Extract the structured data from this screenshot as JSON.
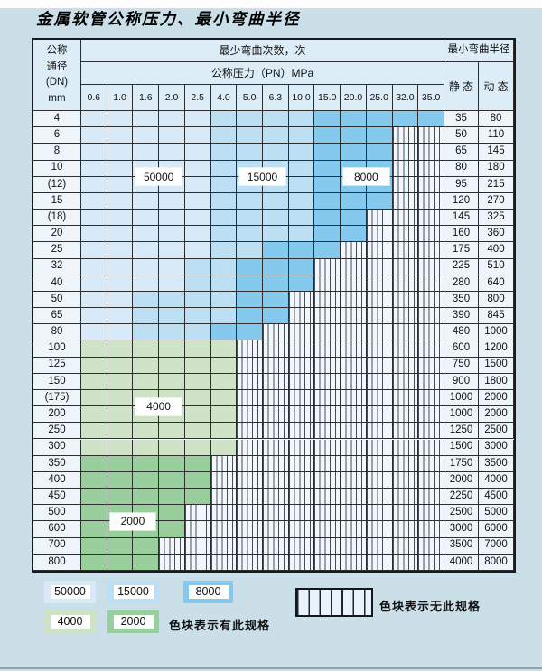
{
  "title": "金属软管公称压力、最小弯曲半径",
  "table": {
    "dn_header_lines": [
      "公称",
      "通径",
      "(DN)",
      "mm"
    ],
    "bend_cycles_header": "最少弯曲次数，次",
    "pressure_header": "公称压力（PN）MPa",
    "min_radius_header": "最小弯曲半径",
    "static_header": "静 态",
    "dynamic_header": "动 态",
    "pressure_columns": [
      "0.6",
      "1.0",
      "1.6",
      "2.0",
      "2.5",
      "4.0",
      "5.0",
      "6.3",
      "10.0",
      "15.0",
      "20.0",
      "25.0",
      "32.0",
      "35.0"
    ],
    "rows": [
      {
        "dn": "4",
        "cells": [
          "b1",
          "b1",
          "b1",
          "b1",
          "b1",
          "b2",
          "b2",
          "b2",
          "b2",
          "b3",
          "b3",
          "b3",
          "b3",
          "b3"
        ],
        "static": "35",
        "dynamic": "80"
      },
      {
        "dn": "6",
        "cells": [
          "b1",
          "b1",
          "b1",
          "b1",
          "b1",
          "b2",
          "b2",
          "b2",
          "b2",
          "b3",
          "b3",
          "b3",
          "x",
          "x"
        ],
        "static": "50",
        "dynamic": "110"
      },
      {
        "dn": "8",
        "cells": [
          "b1",
          "b1",
          "b1",
          "b1",
          "b1",
          "b2",
          "b2",
          "b2",
          "b2",
          "b3",
          "b3",
          "b3",
          "x",
          "x"
        ],
        "static": "65",
        "dynamic": "145"
      },
      {
        "dn": "10",
        "cells": [
          "b1",
          "b1",
          "b1",
          "b1",
          "b1",
          "b2",
          "b2",
          "b2",
          "b2",
          "b3",
          "b3",
          "b3",
          "x",
          "x"
        ],
        "static": "80",
        "dynamic": "180"
      },
      {
        "dn": "(12)",
        "cells": [
          "b1",
          "b1",
          "b1",
          "b1",
          "b1",
          "b2",
          "b2",
          "b2",
          "b2",
          "b3",
          "b3",
          "b3",
          "x",
          "x"
        ],
        "static": "95",
        "dynamic": "215"
      },
      {
        "dn": "15",
        "cells": [
          "b1",
          "b1",
          "b1",
          "b1",
          "b1",
          "b2",
          "b2",
          "b2",
          "b2",
          "b3",
          "b3",
          "b3",
          "x",
          "x"
        ],
        "static": "120",
        "dynamic": "270"
      },
      {
        "dn": "(18)",
        "cells": [
          "b1",
          "b1",
          "b1",
          "b1",
          "b1",
          "b2",
          "b2",
          "b2",
          "b2",
          "b3",
          "b3",
          "x",
          "x",
          "x"
        ],
        "static": "145",
        "dynamic": "325"
      },
      {
        "dn": "20",
        "cells": [
          "b1",
          "b1",
          "b1",
          "b1",
          "b1",
          "b2",
          "b2",
          "b2",
          "b2",
          "b3",
          "b3",
          "x",
          "x",
          "x"
        ],
        "static": "160",
        "dynamic": "360"
      },
      {
        "dn": "25",
        "cells": [
          "b1",
          "b1",
          "b1",
          "b1",
          "b1",
          "b2",
          "b2",
          "b3",
          "b3",
          "b3",
          "x",
          "x",
          "x",
          "x"
        ],
        "static": "175",
        "dynamic": "400"
      },
      {
        "dn": "32",
        "cells": [
          "b1",
          "b1",
          "b1",
          "b1",
          "b2",
          "b2",
          "b3",
          "b3",
          "b3",
          "x",
          "x",
          "x",
          "x",
          "x"
        ],
        "static": "225",
        "dynamic": "510"
      },
      {
        "dn": "40",
        "cells": [
          "b1",
          "b1",
          "b1",
          "b1",
          "b2",
          "b2",
          "b3",
          "b3",
          "b3",
          "x",
          "x",
          "x",
          "x",
          "x"
        ],
        "static": "280",
        "dynamic": "640"
      },
      {
        "dn": "50",
        "cells": [
          "b1",
          "b1",
          "b2",
          "b2",
          "b2",
          "b2",
          "b3",
          "b3",
          "x",
          "x",
          "x",
          "x",
          "x",
          "x"
        ],
        "static": "350",
        "dynamic": "800"
      },
      {
        "dn": "65",
        "cells": [
          "b1",
          "b1",
          "b2",
          "b2",
          "b2",
          "b2",
          "b3",
          "b3",
          "x",
          "x",
          "x",
          "x",
          "x",
          "x"
        ],
        "static": "390",
        "dynamic": "845"
      },
      {
        "dn": "80",
        "cells": [
          "b1",
          "b1",
          "b2",
          "b2",
          "b2",
          "b3",
          "b3",
          "x",
          "x",
          "x",
          "x",
          "x",
          "x",
          "x"
        ],
        "static": "480",
        "dynamic": "1000"
      },
      {
        "dn": "100",
        "cells": [
          "g1",
          "g1",
          "g1",
          "g1",
          "g1",
          "g1",
          "x",
          "x",
          "x",
          "x",
          "x",
          "x",
          "x",
          "x"
        ],
        "static": "600",
        "dynamic": "1200"
      },
      {
        "dn": "125",
        "cells": [
          "g1",
          "g1",
          "g1",
          "g1",
          "g1",
          "g1",
          "x",
          "x",
          "x",
          "x",
          "x",
          "x",
          "x",
          "x"
        ],
        "static": "750",
        "dynamic": "1500"
      },
      {
        "dn": "150",
        "cells": [
          "g1",
          "g1",
          "g1",
          "g1",
          "g1",
          "g1",
          "x",
          "x",
          "x",
          "x",
          "x",
          "x",
          "x",
          "x"
        ],
        "static": "900",
        "dynamic": "1800"
      },
      {
        "dn": "(175)",
        "cells": [
          "g1",
          "g1",
          "g1",
          "g1",
          "g1",
          "g1",
          "x",
          "x",
          "x",
          "x",
          "x",
          "x",
          "x",
          "x"
        ],
        "static": "1000",
        "dynamic": "2000"
      },
      {
        "dn": "200",
        "cells": [
          "g1",
          "g1",
          "g1",
          "g1",
          "g1",
          "g1",
          "x",
          "x",
          "x",
          "x",
          "x",
          "x",
          "x",
          "x"
        ],
        "static": "1000",
        "dynamic": "2000"
      },
      {
        "dn": "250",
        "cells": [
          "g1",
          "g1",
          "g1",
          "g1",
          "g1",
          "g1",
          "x",
          "x",
          "x",
          "x",
          "x",
          "x",
          "x",
          "x"
        ],
        "static": "1250",
        "dynamic": "2500"
      },
      {
        "dn": "300",
        "cells": [
          "g1",
          "g1",
          "g1",
          "g1",
          "g1",
          "g1",
          "x",
          "x",
          "x",
          "x",
          "x",
          "x",
          "x",
          "x"
        ],
        "static": "1500",
        "dynamic": "3000"
      },
      {
        "dn": "350",
        "cells": [
          "g2",
          "g2",
          "g2",
          "g2",
          "g2",
          "x",
          "x",
          "x",
          "x",
          "x",
          "x",
          "x",
          "x",
          "x"
        ],
        "static": "1750",
        "dynamic": "3500"
      },
      {
        "dn": "400",
        "cells": [
          "g2",
          "g2",
          "g2",
          "g2",
          "g2",
          "x",
          "x",
          "x",
          "x",
          "x",
          "x",
          "x",
          "x",
          "x"
        ],
        "static": "2000",
        "dynamic": "4000"
      },
      {
        "dn": "450",
        "cells": [
          "g2",
          "g2",
          "g2",
          "g2",
          "g2",
          "x",
          "x",
          "x",
          "x",
          "x",
          "x",
          "x",
          "x",
          "x"
        ],
        "static": "2250",
        "dynamic": "4500"
      },
      {
        "dn": "500",
        "cells": [
          "g2",
          "g2",
          "g2",
          "g2",
          "x",
          "x",
          "x",
          "x",
          "x",
          "x",
          "x",
          "x",
          "x",
          "x"
        ],
        "static": "2500",
        "dynamic": "5000"
      },
      {
        "dn": "600",
        "cells": [
          "g2",
          "g2",
          "g2",
          "g2",
          "x",
          "x",
          "x",
          "x",
          "x",
          "x",
          "x",
          "x",
          "x",
          "x"
        ],
        "static": "3000",
        "dynamic": "6000"
      },
      {
        "dn": "700",
        "cells": [
          "g2",
          "g2",
          "g2",
          "x",
          "x",
          "x",
          "x",
          "x",
          "x",
          "x",
          "x",
          "x",
          "x",
          "x"
        ],
        "static": "3500",
        "dynamic": "7000"
      },
      {
        "dn": "800",
        "cells": [
          "g2",
          "g2",
          "g2",
          "x",
          "x",
          "x",
          "x",
          "x",
          "x",
          "x",
          "x",
          "x",
          "x",
          "x"
        ],
        "static": "4000",
        "dynamic": "8000"
      }
    ]
  },
  "zone_colors": {
    "b1": "#d8eaf7",
    "b2": "#bcdff4",
    "b3": "#86c9ee",
    "g1": "#cfe3c6",
    "g2": "#98cf9c"
  },
  "zone_values": {
    "b1": "50000",
    "b2": "15000",
    "b3": "8000",
    "g1": "4000",
    "g2": "2000"
  },
  "overlays": [
    {
      "text": "50000",
      "col_start": 2,
      "row_boundary": 4
    },
    {
      "text": "15000",
      "col_start": 6,
      "row_boundary": 4
    },
    {
      "text": "8000",
      "col_start": 10,
      "row_boundary": 4
    },
    {
      "text": "4000",
      "col_start": 2,
      "row_boundary": 18
    },
    {
      "text": "2000",
      "col_start": 1,
      "row_boundary": 25
    }
  ],
  "legend": {
    "present_label": "色块表示有此规格",
    "absent_label": "色块表示无此规格",
    "swatches": [
      {
        "text": "50000",
        "zone": "b1"
      },
      {
        "text": "15000",
        "zone": "b2"
      },
      {
        "text": "8000",
        "zone": "b3"
      },
      {
        "text": "4000",
        "zone": "g1"
      },
      {
        "text": "2000",
        "zone": "g2"
      }
    ]
  }
}
